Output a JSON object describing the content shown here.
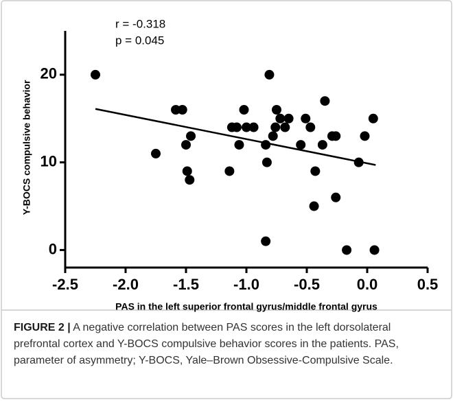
{
  "chart_data": {
    "type": "scatter",
    "annotations": [
      "r = -0.318",
      "p = 0.045"
    ],
    "x_label": "PAS in the left superior frontal gyrus/middle frontal gyrus",
    "y_label": "Y-BOCS compulsive behavior",
    "xlim": [
      -2.5,
      0.5
    ],
    "ylim": [
      -2,
      25
    ],
    "xticks": [
      -2.5,
      {
        "value": -2,
        "label": "-2.0"
      },
      -1.5,
      {
        "value": -1,
        "label": "-1.0"
      },
      -0.5,
      {
        "value": 0,
        "label": "0.0"
      },
      0.5
    ],
    "yticks": [
      0,
      10,
      20
    ],
    "color": "#000000",
    "x": [
      -2.25,
      -1.75,
      -1.585,
      -1.53,
      -1.5,
      -1.49,
      -1.46,
      -1.47,
      -1.14,
      -1.12,
      -1.08,
      -1.06,
      -1.02,
      -1.0,
      -0.94,
      -0.84,
      -0.84,
      -0.83,
      -0.81,
      -0.78,
      -0.76,
      -0.75,
      -0.72,
      -0.68,
      -0.65,
      -0.55,
      -0.51,
      -0.47,
      -0.43,
      -0.44,
      -0.37,
      -0.35,
      -0.29,
      -0.26,
      -0.26,
      -0.17,
      -0.07,
      -0.02,
      0.05,
      0.06
    ],
    "values": [
      20,
      11,
      16,
      16,
      12,
      9,
      13,
      8,
      9,
      14,
      14,
      12,
      16,
      14,
      14,
      12,
      1,
      10,
      20,
      13,
      14,
      16,
      15,
      14,
      15,
      12,
      15,
      14,
      9,
      5,
      12,
      17,
      13,
      13,
      6,
      0,
      10,
      13,
      15,
      0
    ],
    "fit_line": {
      "x": [
        -2.25,
        0.07
      ],
      "y": [
        16.1,
        9.7
      ]
    }
  },
  "caption": {
    "label": "FIGURE 2 |",
    "text": " A negative correlation between PAS scores in the left dorsolateral prefrontal cortex and Y-BOCS compulsive behavior scores in the patients. PAS, parameter of asymmetry; Y-BOCS, Yale–Brown Obsessive-Compulsive Scale."
  }
}
